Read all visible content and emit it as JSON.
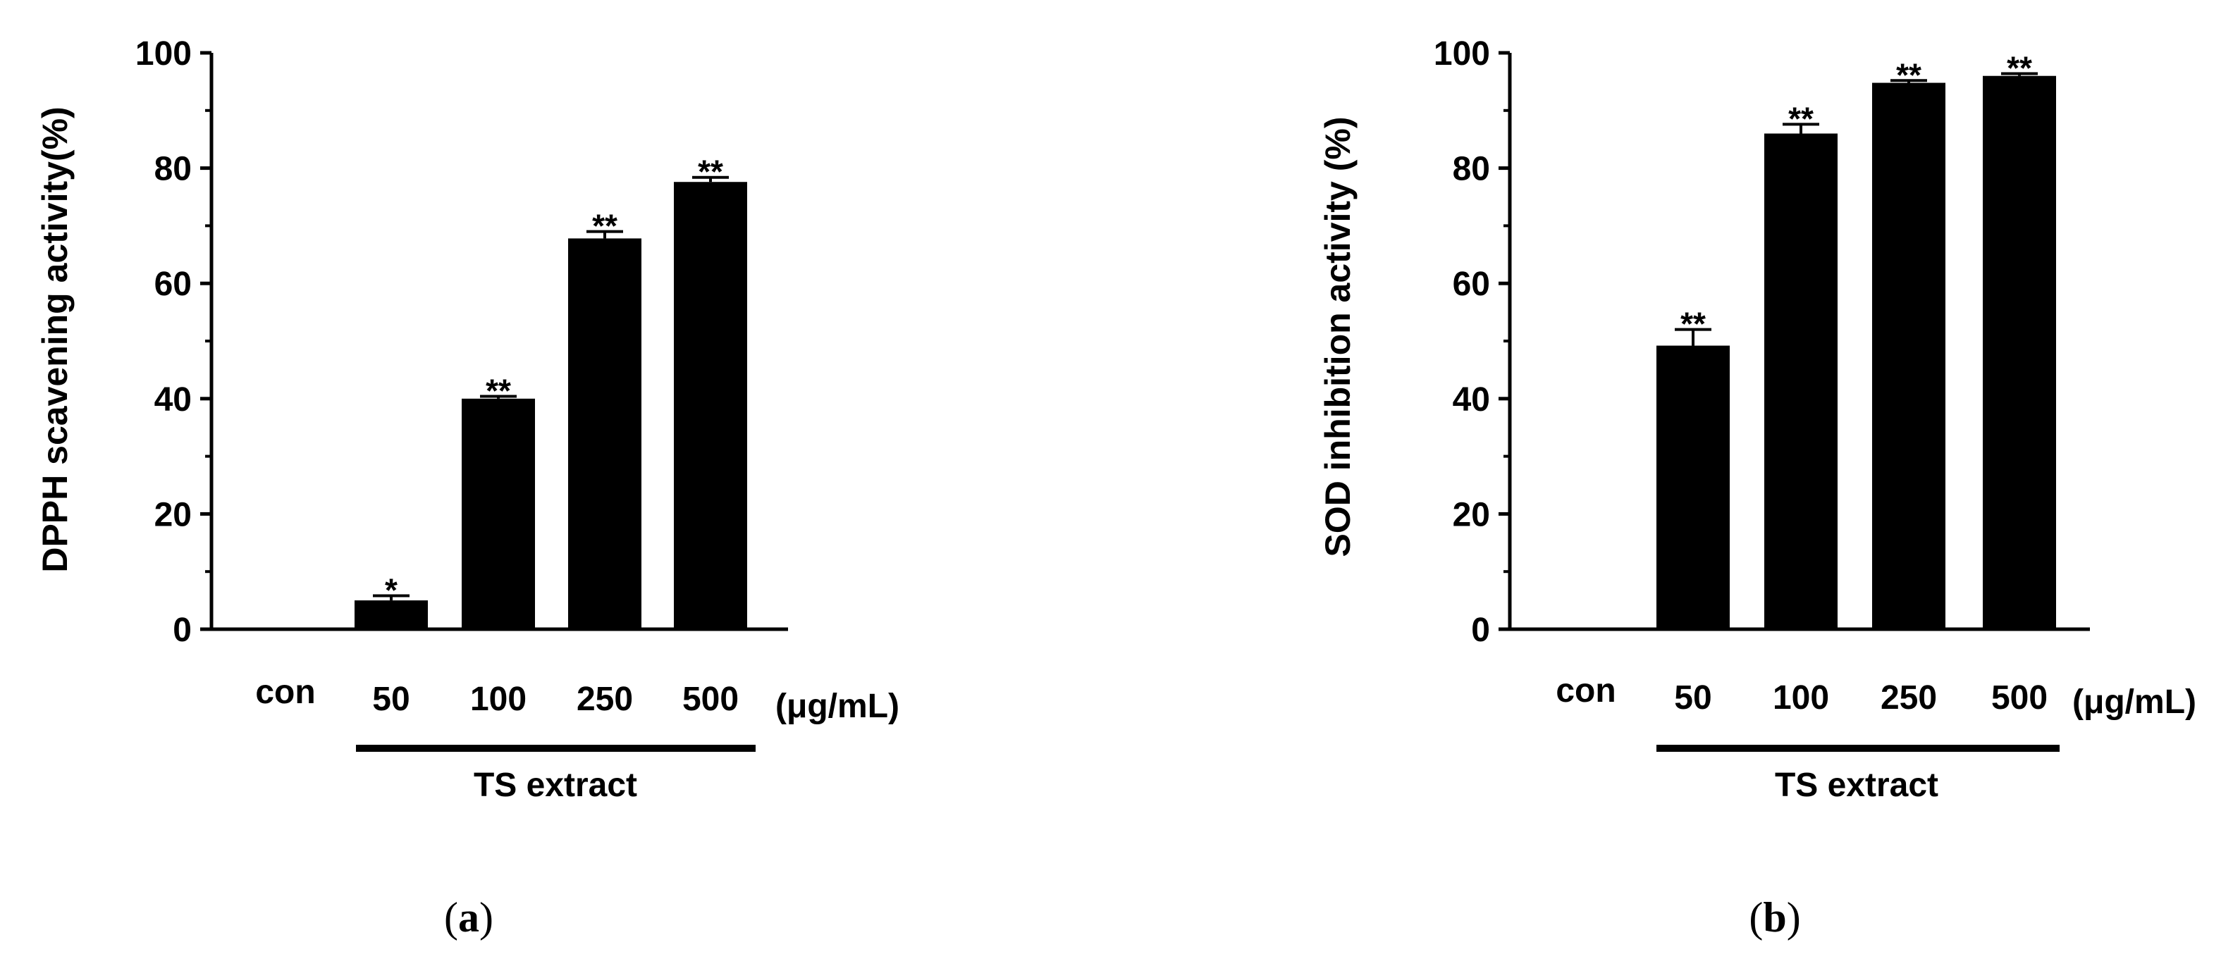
{
  "chart_data": [
    {
      "type": "bar",
      "categories": [
        "con",
        "50",
        "100",
        "250",
        "500"
      ],
      "values": [
        0,
        5,
        40,
        67.8,
        77.6
      ],
      "errors": [
        0,
        0.8,
        0.4,
        1.2,
        0.8
      ],
      "significance": [
        "",
        "*",
        "**",
        "**",
        "**"
      ],
      "unit_label": "(μg/mL)",
      "group_label": "TS extract",
      "ylabel": "DPPH scavening activity(%)",
      "yticks": [
        "0",
        "20",
        "40",
        "60",
        "80",
        "100"
      ],
      "ylim": [
        0,
        100
      ],
      "panel_label": "a",
      "bar_color": "#000000"
    },
    {
      "type": "bar",
      "categories": [
        "con",
        "50",
        "100",
        "250",
        "500"
      ],
      "values": [
        0,
        49.2,
        86,
        94.8,
        96
      ],
      "errors": [
        0,
        2.8,
        1.6,
        0.4,
        0.4
      ],
      "significance": [
        "",
        "**",
        "**",
        "**",
        "**"
      ],
      "unit_label": "(μg/mL)",
      "group_label": "TS extract",
      "ylabel": "SOD inhibition activity (%)",
      "yticks": [
        "0",
        "20",
        "40",
        "60",
        "80",
        "100"
      ],
      "ylim": [
        0,
        100
      ],
      "panel_label": "b",
      "bar_color": "#000000"
    }
  ]
}
